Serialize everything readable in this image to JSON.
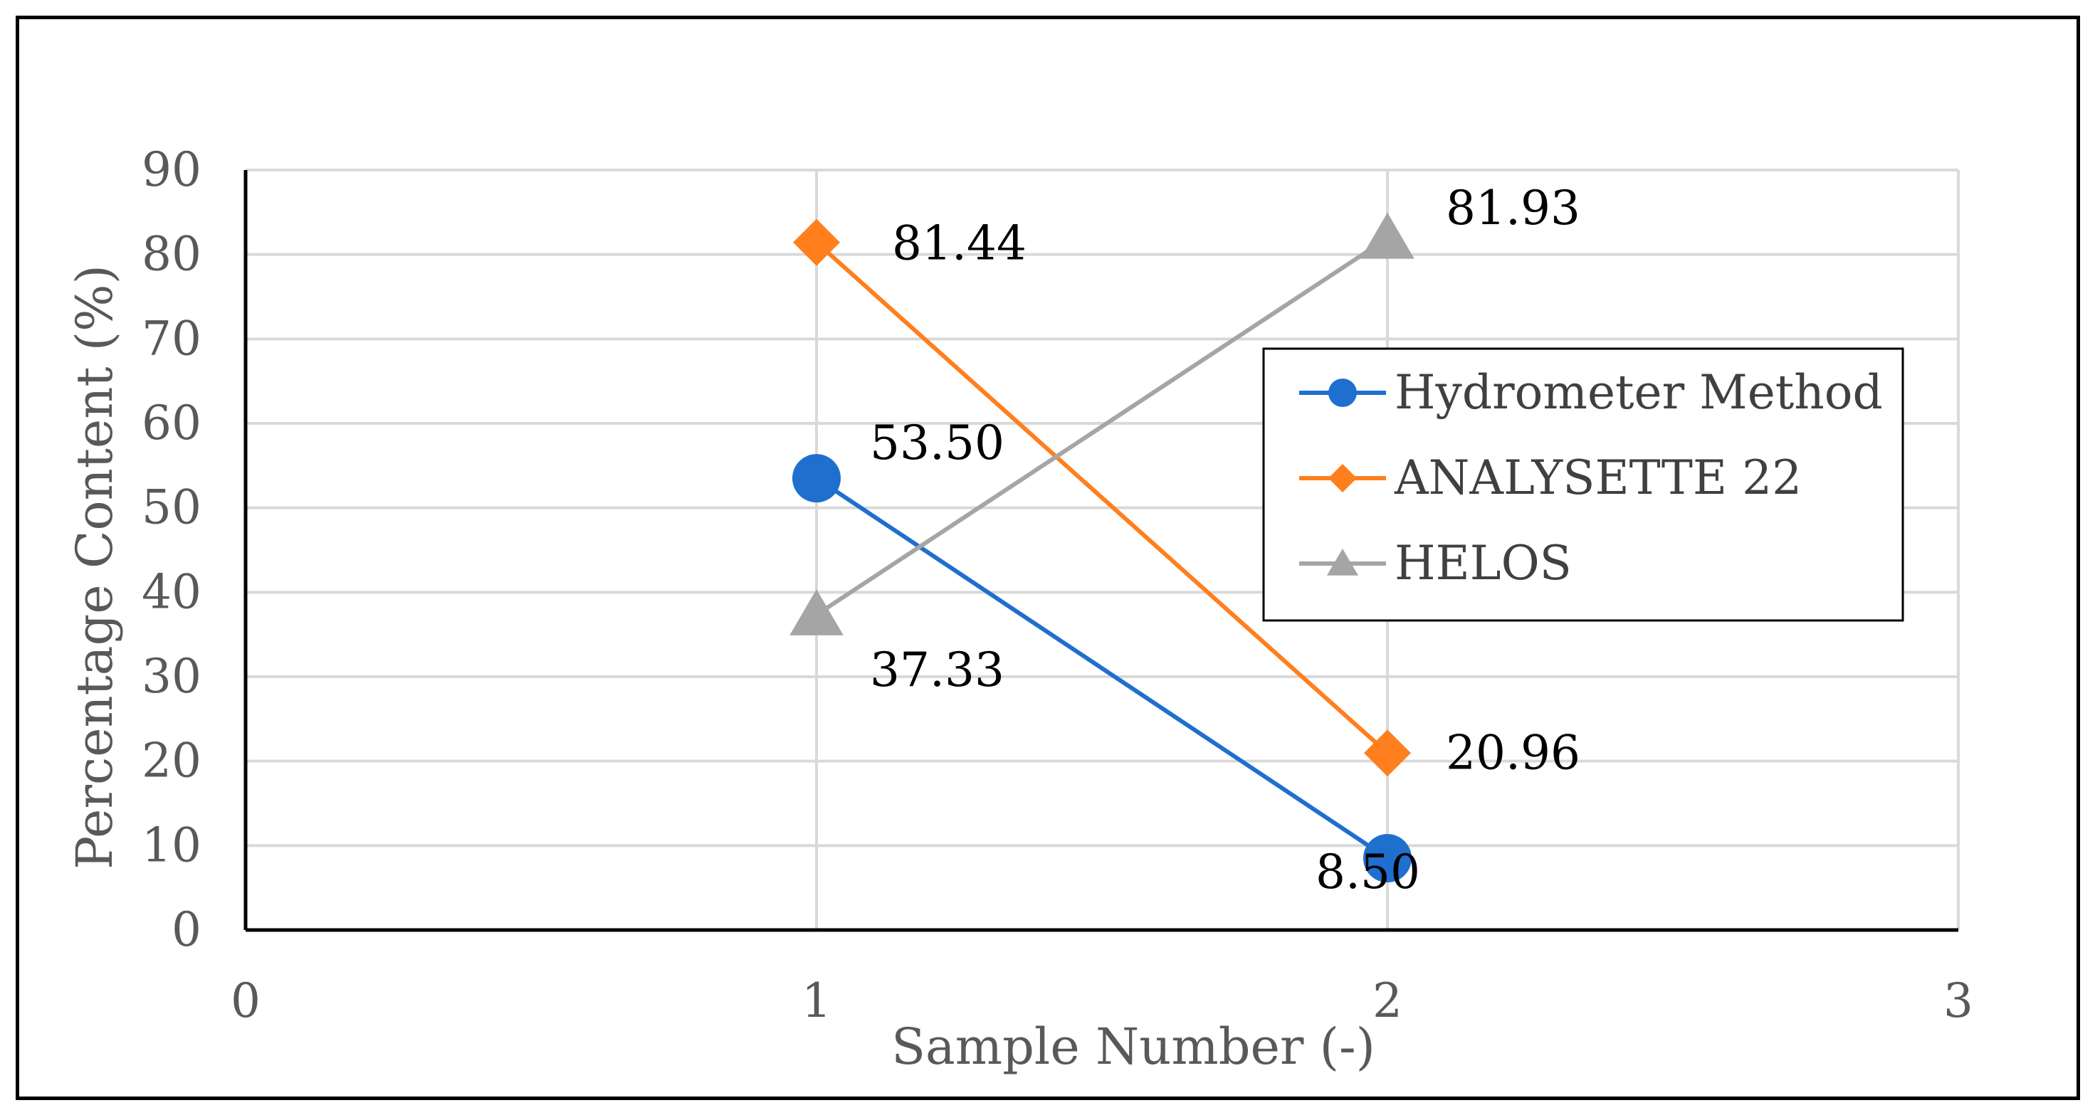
{
  "chart_data": {
    "type": "line",
    "title": "",
    "xlabel": "Sample Number (-)",
    "ylabel": "Percentage Content (%)",
    "xlim": [
      0,
      3
    ],
    "ylim": [
      0,
      90
    ],
    "x_ticks": [
      "0",
      "1",
      "2",
      "3"
    ],
    "y_ticks": [
      "0",
      "10",
      "20",
      "30",
      "40",
      "50",
      "60",
      "70",
      "80",
      "90"
    ],
    "grid": true,
    "legend_position": "right",
    "series": [
      {
        "name": "Hydrometer Method",
        "color": "#1f6fcf",
        "marker": "circle",
        "x": [
          1,
          2
        ],
        "values": [
          53.5,
          8.5
        ],
        "labels": [
          "53.50",
          "8.50"
        ]
      },
      {
        "name": "ANALYSETTE 22",
        "color": "#ff7f1e",
        "marker": "diamond",
        "x": [
          1,
          2
        ],
        "values": [
          81.44,
          20.96
        ],
        "labels": [
          "81.44",
          "20.96"
        ]
      },
      {
        "name": "HELOS",
        "color": "#a5a5a5",
        "marker": "triangle",
        "x": [
          1,
          2
        ],
        "values": [
          37.33,
          81.93
        ],
        "labels": [
          "37.33",
          "81.93"
        ]
      }
    ]
  }
}
